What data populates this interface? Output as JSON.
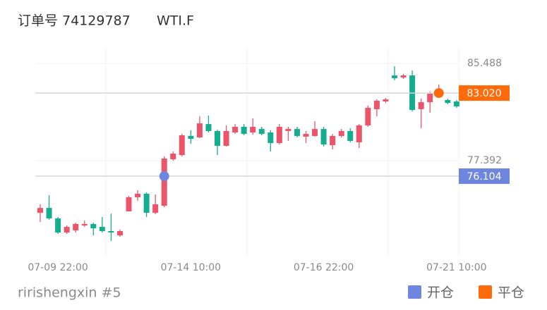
{
  "chart_data": {
    "type": "candlestick",
    "title": "订单号 74129787",
    "subtitle": "WTI.F",
    "caption": "ririshengxin #5",
    "categories": [
      null,
      null,
      "07-09 22:00",
      null,
      null,
      null,
      null,
      null,
      null,
      null,
      null,
      null,
      null,
      null,
      null,
      null,
      null,
      "07-14 10:00",
      null,
      null,
      null,
      null,
      null,
      null,
      null,
      null,
      null,
      null,
      null,
      null,
      null,
      null,
      "07-16 22:00",
      null,
      null,
      null,
      null,
      null,
      null,
      null,
      null,
      null,
      null,
      null,
      null,
      null,
      null,
      "07-21 10:00"
    ],
    "open": [
      73.05,
      73.46,
      72.59,
      71.41,
      71.59,
      72.0,
      72.12,
      71.88,
      71.53,
      71.17,
      73.17,
      74.35,
      74.64,
      73.05,
      73.64,
      77.51,
      77.86,
      79.45,
      79.33,
      80.44,
      79.86,
      78.63,
      79.74,
      80.21,
      79.74,
      80.03,
      79.74,
      78.86,
      79.86,
      80.03,
      79.39,
      79.45,
      80.03,
      78.68,
      79.45,
      79.86,
      78.92,
      80.33,
      81.68,
      82.32,
      84.49,
      84.32,
      84.49,
      81.68,
      82.26,
      82.91,
      82.44,
      82.32
    ],
    "high": [
      73.76,
      74.52,
      72.7,
      72.0,
      72.23,
      72.41,
      72.23,
      72.7,
      72.98,
      71.65,
      74.46,
      74.93,
      74.75,
      74.58,
      77.75,
      78.16,
      79.62,
      79.92,
      81.09,
      81.15,
      79.97,
      80.33,
      80.44,
      80.44,
      80.91,
      80.21,
      79.92,
      80.44,
      80.21,
      80.21,
      79.86,
      80.68,
      80.21,
      79.62,
      80.03,
      80.09,
      80.44,
      81.97,
      82.5,
      82.61,
      85.25,
      84.61,
      84.9,
      82.56,
      83.14,
      83.73,
      82.56,
      82.44
    ],
    "low": [
      72.29,
      72.47,
      71.3,
      71.3,
      71.41,
      71.88,
      71.17,
      71.41,
      70.71,
      71.06,
      73.17,
      74.05,
      72.7,
      72.94,
      73.52,
      77.39,
      77.75,
      78.8,
      79.27,
      79.74,
      77.86,
      78.57,
      79.62,
      79.51,
      79.56,
      79.51,
      78.16,
      78.74,
      79.04,
      79.33,
      78.86,
      79.39,
      78.57,
      78.33,
      79.33,
      78.92,
      78.45,
      80.21,
      81.09,
      82.2,
      84.08,
      84.2,
      81.5,
      80.09,
      81.38,
      82.79,
      82.09,
      81.79
    ],
    "close": [
      73.46,
      72.59,
      71.41,
      71.88,
      72.12,
      72.12,
      71.76,
      71.53,
      71.41,
      71.53,
      74.35,
      74.64,
      73.05,
      73.76,
      77.57,
      77.98,
      79.51,
      79.21,
      80.5,
      79.86,
      78.63,
      79.86,
      80.21,
      79.62,
      80.21,
      79.62,
      78.86,
      80.21,
      80.03,
      79.45,
      79.62,
      80.03,
      78.74,
      79.45,
      79.86,
      79.04,
      80.33,
      81.79,
      82.38,
      82.5,
      84.26,
      84.49,
      81.62,
      82.26,
      82.97,
      83.26,
      82.2,
      81.91
    ],
    "up_color": "#ec5469",
    "down_color": "#14ad8f",
    "ylim": [
      69.36,
      86.78
    ],
    "yticks": [
      85.488,
      77.392
    ],
    "markers": [
      {
        "name": "开仓",
        "color": "#6f86de",
        "x": 14,
        "value": 76.104
      },
      {
        "name": "平仓",
        "color": "#ff6a0a",
        "x": 45,
        "value": 83.02,
        "value_label": "83.020"
      }
    ]
  }
}
